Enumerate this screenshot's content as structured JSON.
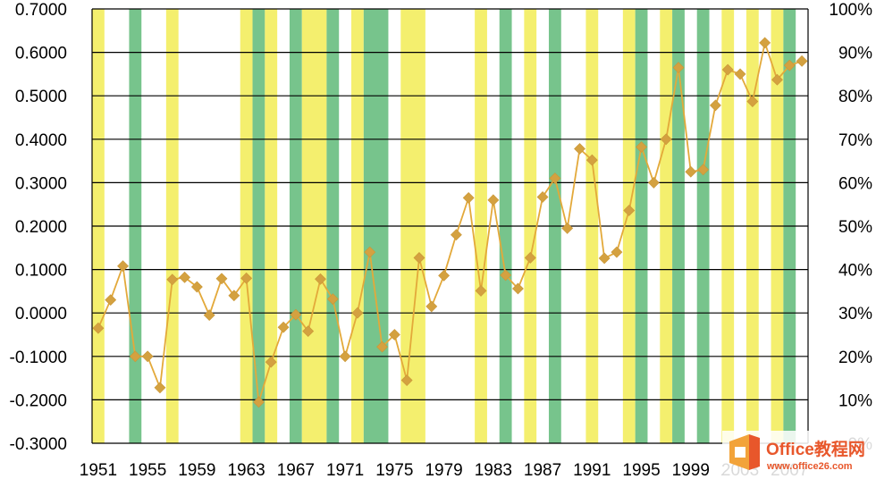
{
  "chart_data": {
    "type": "line",
    "title": "",
    "xlabel": "",
    "ylabel": "",
    "x_tick_labels": [
      "1951",
      "1955",
      "1959",
      "1963",
      "1967",
      "1971",
      "1975",
      "1979",
      "1983",
      "1987",
      "1991",
      "1995",
      "1999",
      "2003",
      "2007"
    ],
    "y_left_tick_labels": [
      "0.7000",
      "0.6000",
      "0.5000",
      "0.4000",
      "0.3000",
      "0.2000",
      "0.1000",
      "0.0000",
      "-0.1000",
      "-0.2000",
      "-0.3000"
    ],
    "y_right_tick_labels": [
      "100%",
      "90%",
      "80%",
      "70%",
      "60%",
      "50%",
      "40%",
      "30%",
      "20%",
      "10%",
      "0%"
    ],
    "ylim_left": [
      -0.3,
      0.7
    ],
    "ylim_right": [
      0,
      100
    ],
    "xlim": [
      1950.5,
      2008.5
    ],
    "grid": "horizontal",
    "legend": "none",
    "colors": {
      "line": "#e3a93a",
      "marker": "#d4a140",
      "yellow_band": "#f4ef6e",
      "green_band": "#77c48c",
      "grid": "#000000"
    },
    "series": [
      {
        "x": [
          1951,
          1952,
          1953,
          1954,
          1955,
          1956,
          1957,
          1958,
          1959,
          1960,
          1961,
          1962,
          1963,
          1964,
          1965,
          1966,
          1967,
          1968,
          1969,
          1970,
          1971,
          1972,
          1973,
          1974,
          1975,
          1976,
          1977,
          1978,
          1979,
          1980,
          1981,
          1982,
          1983,
          1984,
          1985,
          1986,
          1987,
          1988,
          1989,
          1990,
          1991,
          1992,
          1993,
          1994,
          1995,
          1996,
          1997,
          1998,
          1999,
          2000,
          2001,
          2002,
          2003,
          2004,
          2005,
          2006,
          2007,
          2008
        ],
        "values": [
          -0.035,
          0.03,
          0.108,
          -0.1,
          -0.1,
          -0.172,
          0.077,
          0.082,
          0.06,
          -0.005,
          0.079,
          0.04,
          0.08,
          -0.205,
          -0.113,
          -0.033,
          -0.004,
          -0.042,
          0.078,
          0.032,
          -0.1,
          0.0,
          0.14,
          -0.078,
          -0.05,
          -0.155,
          0.127,
          0.015,
          0.086,
          0.18,
          0.265,
          0.051,
          0.26,
          0.087,
          0.056,
          0.127,
          0.267,
          0.31,
          0.195,
          0.378,
          0.352,
          0.126,
          0.14,
          0.236,
          0.382,
          0.3,
          0.4,
          0.565,
          0.325,
          0.33,
          0.478,
          0.56,
          0.55,
          0.487,
          0.622,
          0.537,
          0.57,
          0.58
        ]
      }
    ],
    "bands": [
      {
        "start": 1951,
        "end": 1951,
        "color": "yellow"
      },
      {
        "start": 1954,
        "end": 1954,
        "color": "green"
      },
      {
        "start": 1957,
        "end": 1957,
        "color": "yellow"
      },
      {
        "start": 1963,
        "end": 1963,
        "color": "yellow"
      },
      {
        "start": 1964,
        "end": 1964,
        "color": "green"
      },
      {
        "start": 1965,
        "end": 1965,
        "color": "yellow"
      },
      {
        "start": 1967,
        "end": 1967,
        "color": "green"
      },
      {
        "start": 1968,
        "end": 1969,
        "color": "yellow"
      },
      {
        "start": 1970,
        "end": 1970,
        "color": "green"
      },
      {
        "start": 1972,
        "end": 1972,
        "color": "yellow"
      },
      {
        "start": 1973,
        "end": 1974,
        "color": "green"
      },
      {
        "start": 1976,
        "end": 1977,
        "color": "yellow"
      },
      {
        "start": 1982,
        "end": 1982,
        "color": "yellow"
      },
      {
        "start": 1984,
        "end": 1984,
        "color": "green"
      },
      {
        "start": 1986,
        "end": 1986,
        "color": "yellow"
      },
      {
        "start": 1988,
        "end": 1988,
        "color": "green"
      },
      {
        "start": 1991,
        "end": 1991,
        "color": "yellow"
      },
      {
        "start": 1994,
        "end": 1994,
        "color": "yellow"
      },
      {
        "start": 1995,
        "end": 1995,
        "color": "green"
      },
      {
        "start": 1997,
        "end": 1997,
        "color": "yellow"
      },
      {
        "start": 1998,
        "end": 1998,
        "color": "green"
      },
      {
        "start": 2000,
        "end": 2000,
        "color": "green"
      },
      {
        "start": 2002,
        "end": 2002,
        "color": "yellow"
      },
      {
        "start": 2004,
        "end": 2004,
        "color": "yellow"
      },
      {
        "start": 2006,
        "end": 2006,
        "color": "yellow"
      },
      {
        "start": 2007,
        "end": 2007,
        "color": "green"
      }
    ]
  },
  "watermark": {
    "brand": "Office教程网",
    "url": "www.office26.com",
    "logo_colors": [
      "#f2a33a",
      "#e8572b"
    ]
  }
}
